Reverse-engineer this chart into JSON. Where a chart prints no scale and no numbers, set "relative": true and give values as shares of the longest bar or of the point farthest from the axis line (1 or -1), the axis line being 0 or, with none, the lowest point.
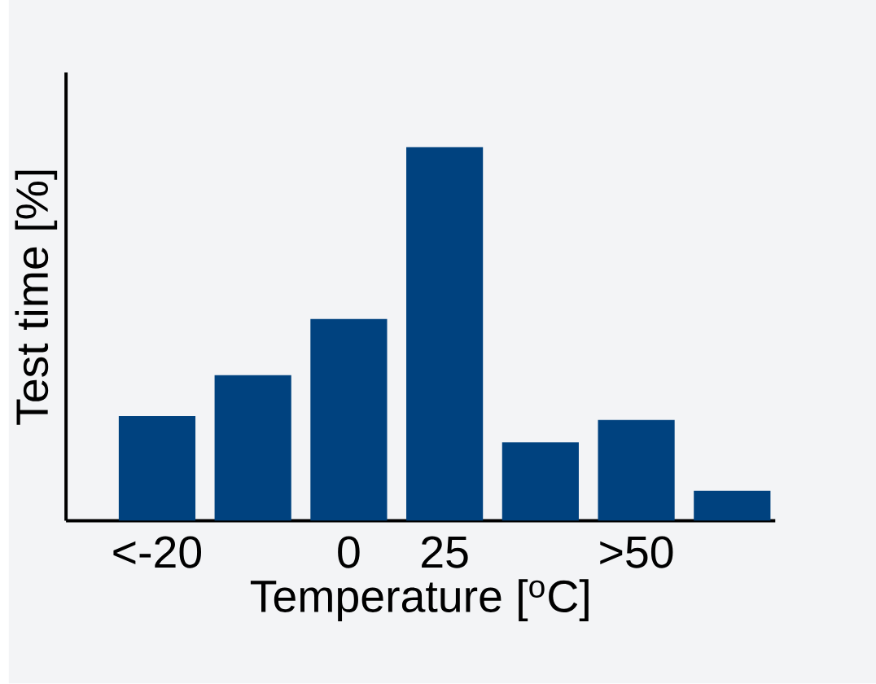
{
  "chart_data": {
    "type": "bar",
    "relative": true,
    "xlabel": "Temperature [$^{o}$C]",
    "ylabel": "Test time [%]",
    "categories": [
      "<-20",
      null,
      "0",
      "25",
      null,
      ">50",
      null
    ],
    "values": [
      0.28,
      0.39,
      0.54,
      1,
      0.21,
      0.27,
      0.08
    ],
    "color": "#00427f"
  }
}
